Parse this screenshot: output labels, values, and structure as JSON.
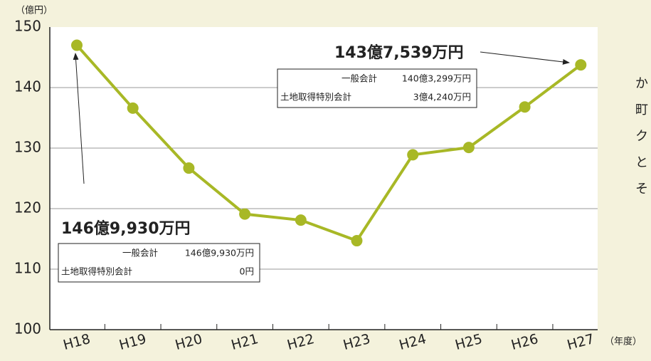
{
  "chart_data": {
    "type": "line",
    "y_label": "（億円）",
    "x_label": "（年度）",
    "categories": [
      "H18",
      "H19",
      "H20",
      "H21",
      "H22",
      "H23",
      "H24",
      "H25",
      "H26",
      "H27"
    ],
    "values": [
      146.993,
      136.6,
      126.7,
      119.1,
      118.1,
      114.7,
      128.9,
      130.1,
      136.8,
      143.7539
    ],
    "color": "#a8b826",
    "ylim": [
      100,
      150
    ],
    "yticks": [
      100,
      110,
      120,
      130,
      140,
      150
    ],
    "grid": true,
    "annotations": [
      {
        "title": "146億9,930万円",
        "rows": [
          [
            "一般会計",
            "146億9,930万円"
          ],
          [
            "土地取得特別会計",
            "0円"
          ]
        ]
      },
      {
        "title": "143億7,539万円",
        "rows": [
          [
            "一般会計",
            "140億3,299万円"
          ],
          [
            "土地取得特別会計",
            "3億4,240万円"
          ]
        ]
      }
    ],
    "side_text": [
      "か",
      "町",
      "ク",
      "と",
      "そ"
    ]
  }
}
